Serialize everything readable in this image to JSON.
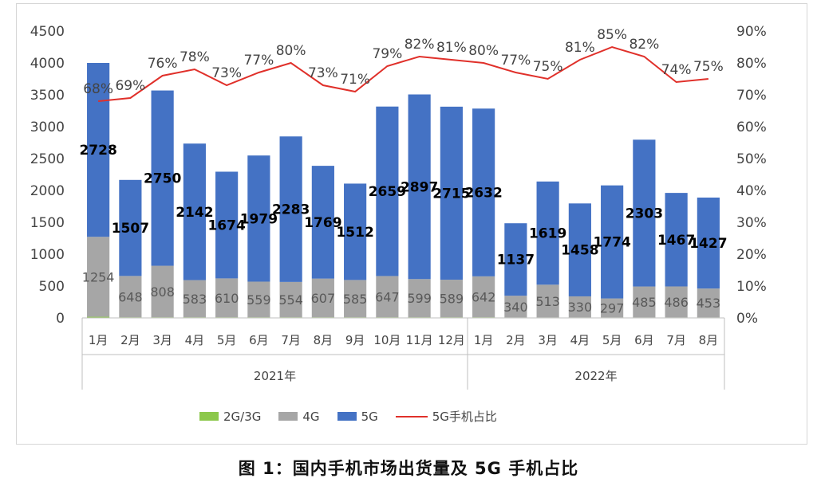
{
  "chart_data": {
    "type": "bar",
    "stacked": true,
    "categories": [
      "1月",
      "2月",
      "3月",
      "4月",
      "5月",
      "6月",
      "7月",
      "8月",
      "9月",
      "10月",
      "11月",
      "12月",
      "1月",
      "2月",
      "3月",
      "4月",
      "5月",
      "6月",
      "7月",
      "8月"
    ],
    "groups": [
      {
        "label": "2021年",
        "start": 0,
        "end": 11
      },
      {
        "label": "2022年",
        "start": 12,
        "end": 19
      }
    ],
    "series": [
      {
        "name": "2G/3G",
        "color": "#8cc84b",
        "values": [
          18,
          10,
          10,
          10,
          10,
          10,
          10,
          10,
          10,
          10,
          10,
          10,
          10,
          8,
          8,
          8,
          8,
          8,
          8,
          8
        ]
      },
      {
        "name": "4G",
        "color": "#a6a6a6",
        "values": [
          1254,
          648,
          808,
          583,
          610,
          559,
          554,
          607,
          585,
          647,
          599,
          589,
          642,
          340,
          513,
          330,
          297,
          485,
          486,
          453
        ]
      },
      {
        "name": "5G",
        "color": "#4472c4",
        "values": [
          2728,
          1507,
          2750,
          2142,
          1674,
          1979,
          2283,
          1769,
          1512,
          2659,
          2897,
          2715,
          2632,
          1137,
          1619,
          1458,
          1774,
          2303,
          1467,
          1427
        ]
      }
    ],
    "line": {
      "name": "5G手机占比",
      "color": "#e0302a",
      "values": [
        68,
        69,
        76,
        78,
        73,
        77,
        80,
        73,
        71,
        79,
        82,
        81,
        80,
        77,
        75,
        81,
        85,
        82,
        74,
        75
      ],
      "labels": [
        "68%",
        "69%",
        "76%",
        "78%",
        "73%",
        "77%",
        "80%",
        "73%",
        "71%",
        "79%",
        "82%",
        "81%",
        "80%",
        "77%",
        "75%",
        "81%",
        "85%",
        "82%",
        "74%",
        "75%"
      ]
    },
    "bar_labels_4g": [
      "1254",
      "648",
      "808",
      "583",
      "610",
      "559",
      "554",
      "607",
      "585",
      "647",
      "599",
      "589",
      "642",
      "340",
      "513",
      "330",
      "297",
      "485",
      "486",
      "453"
    ],
    "bar_labels_5g": [
      "2728",
      "1507",
      "2750",
      "2142",
      "1674",
      "1979",
      "2283",
      "1769",
      "1512",
      "2659",
      "2897",
      "2715",
      "2632",
      "1137",
      "1619",
      "1458",
      "1774",
      "2303",
      "1467",
      "1427"
    ],
    "y_left": {
      "min": 0,
      "max": 4500,
      "ticks": [
        "0",
        "500",
        "1000",
        "1500",
        "2000",
        "2500",
        "3000",
        "3500",
        "4000",
        "4500"
      ]
    },
    "y_right": {
      "min": 0,
      "max": 90,
      "ticks": [
        "0%",
        "10%",
        "20%",
        "30%",
        "40%",
        "50%",
        "60%",
        "70%",
        "80%",
        "90%"
      ]
    },
    "legend_position": "bottom",
    "grid": false
  },
  "caption": "图 1：国内手机市场出货量及 5G 手机占比",
  "legend": {
    "items": [
      {
        "label": "2G/3G",
        "color": "#8cc84b",
        "kind": "bar"
      },
      {
        "label": "4G",
        "color": "#a6a6a6",
        "kind": "bar"
      },
      {
        "label": "5G",
        "color": "#4472c4",
        "kind": "bar"
      },
      {
        "label": "5G手机占比",
        "color": "#e0302a",
        "kind": "line"
      }
    ]
  }
}
